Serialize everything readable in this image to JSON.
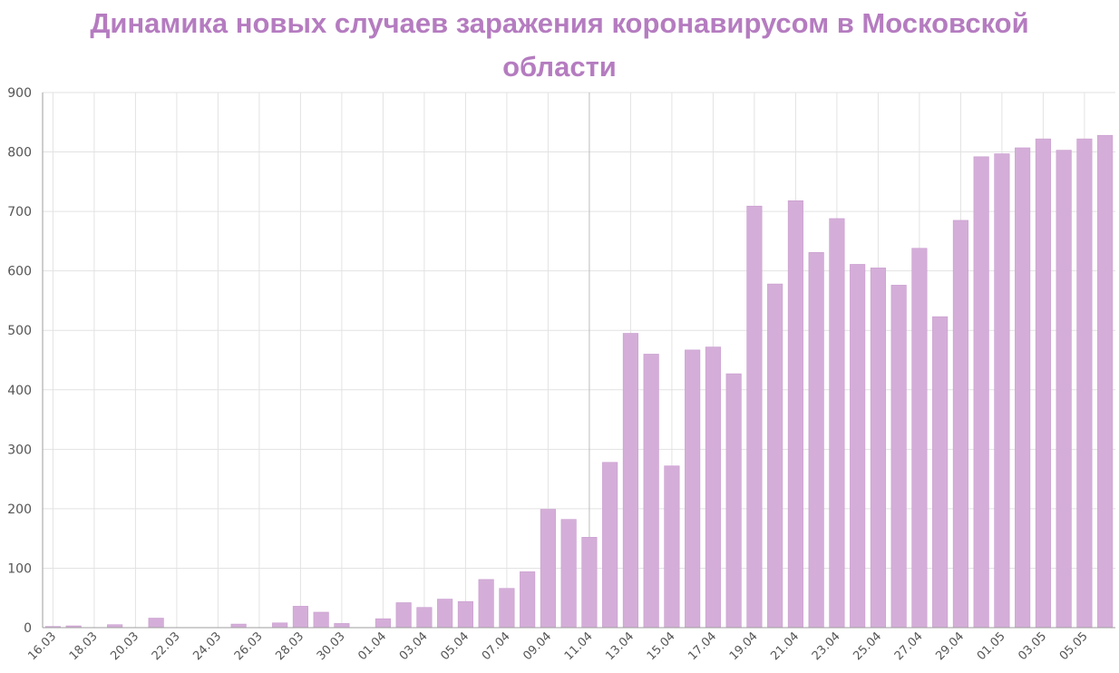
{
  "chart_data": {
    "type": "bar",
    "title_line1": "Динамика новых случаев заражения коронавирусом в Московской",
    "title_line2": "области",
    "xlabel": "",
    "ylabel": "",
    "ylim": [
      0,
      900
    ],
    "yticks": [
      0,
      100,
      200,
      300,
      400,
      500,
      600,
      700,
      800,
      900
    ],
    "grid": true,
    "legend": "none",
    "bar_color": "#d4aed8",
    "bar_edge_color": "#c99ccf",
    "title_color": "#b57cc0",
    "categories": [
      "16.03",
      "17.03",
      "18.03",
      "19.03",
      "20.03",
      "21.03",
      "22.03",
      "23.03",
      "24.03",
      "25.03",
      "26.03",
      "27.03",
      "28.03",
      "29.03",
      "30.03",
      "31.03",
      "01.04",
      "02.04",
      "03.04",
      "04.04",
      "05.04",
      "06.04",
      "07.04",
      "08.04",
      "09.04",
      "10.04",
      "11.04",
      "12.04",
      "13.04",
      "14.04",
      "15.04",
      "16.04",
      "17.04",
      "18.04",
      "19.04",
      "20.04",
      "21.04",
      "22.04",
      "23.04",
      "24.04",
      "25.04",
      "26.04",
      "27.04",
      "28.04",
      "29.04",
      "30.04",
      "01.05",
      "02.05",
      "03.05",
      "04.05",
      "05.05",
      "06.05"
    ],
    "xtick_labels": [
      "16.03",
      "18.03",
      "20.03",
      "22.03",
      "24.03",
      "26.03",
      "28.03",
      "30.03",
      "01.04",
      "03.04",
      "05.04",
      "07.04",
      "09.04",
      "11.04",
      "13.04",
      "15.04",
      "17.04",
      "19.04",
      "21.04",
      "23.04",
      "25.04",
      "27.04",
      "29.04",
      "01.05",
      "03.05",
      "05.05"
    ],
    "values": [
      2,
      3,
      0,
      5,
      0,
      16,
      0,
      0,
      0,
      6,
      0,
      8,
      36,
      26,
      7,
      0,
      15,
      42,
      34,
      48,
      44,
      81,
      66,
      94,
      199,
      182,
      152,
      278,
      495,
      460,
      272,
      467,
      472,
      427,
      709,
      578,
      718,
      631,
      688,
      611,
      605,
      576,
      638,
      523,
      685,
      792,
      797,
      807,
      822,
      803,
      822,
      828
    ]
  }
}
